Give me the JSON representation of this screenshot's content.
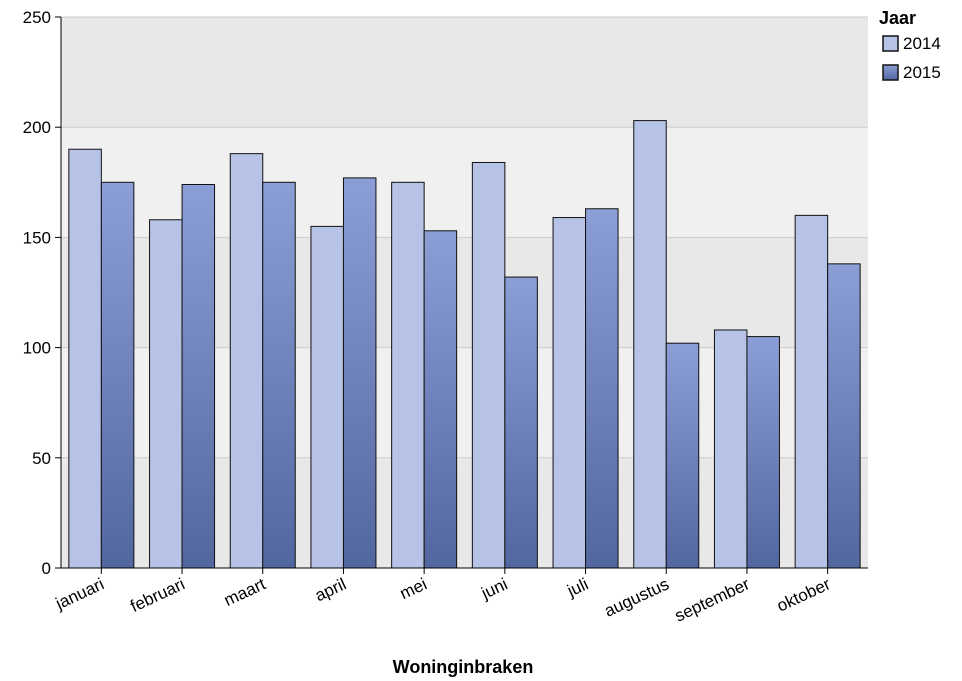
{
  "chart_data": {
    "type": "bar",
    "xlabel": "Woninginbraken",
    "ylabel": "",
    "ylim": [
      0,
      250
    ],
    "yticks": [
      0,
      50,
      100,
      150,
      200,
      250
    ],
    "categories": [
      "januari",
      "februari",
      "maart",
      "april",
      "mei",
      "juni",
      "juli",
      "augustus",
      "september",
      "oktober"
    ],
    "series": [
      {
        "name": "2014",
        "values": [
          190,
          158,
          188,
          155,
          175,
          184,
          159,
          203,
          108,
          160
        ],
        "color": "#b6c3e6"
      },
      {
        "name": "2015",
        "values": [
          175,
          174,
          175,
          177,
          153,
          132,
          163,
          102,
          105,
          138
        ],
        "color": "#6679b8"
      }
    ],
    "legend": {
      "title": "Jaar",
      "position": "top-right"
    },
    "grid": true,
    "background_bands": [
      "#e8e8e8",
      "#f0f0f0"
    ]
  }
}
